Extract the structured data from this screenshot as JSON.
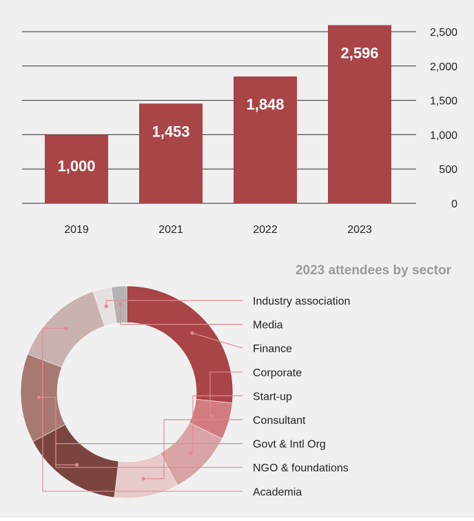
{
  "chart_data": [
    {
      "type": "bar",
      "categories": [
        "2019",
        "2021",
        "2022",
        "2023"
      ],
      "values": [
        1000,
        1453,
        1848,
        2596
      ],
      "value_labels": [
        "1,000",
        "1,453",
        "1,848",
        "2,596"
      ],
      "yticks": [
        0,
        500,
        1000,
        1500,
        2000,
        2500
      ],
      "ytick_labels": [
        "0",
        "500",
        "1,000",
        "1,500",
        "2,000",
        "2,500"
      ],
      "ylim": [
        0,
        2600
      ],
      "y_axis_side": "right",
      "grid": true,
      "bar_color": "#a94447"
    },
    {
      "type": "pie",
      "title": "2023 attendees by sector",
      "categories": [
        "Finance",
        "Corporate",
        "Start-up",
        "Consultant",
        "Govt & Intl Org",
        "NGO & foundations",
        "Academia",
        "Industry association",
        "Media"
      ],
      "values": [
        28.5,
        6.0,
        10.5,
        10.5,
        16.5,
        14.5,
        15.0,
        3.0,
        2.5
      ],
      "colors": [
        "#a94447",
        "#d27c80",
        "#d9a4a6",
        "#e8cacb",
        "#7a4540",
        "#a87872",
        "#c9b3b1",
        "#e6e1e0",
        "#b3b3b3"
      ],
      "legend_order": [
        "Industry association",
        "Media",
        "Finance",
        "Corporate",
        "Start-up",
        "Consultant",
        "Govt & Intl Org",
        "NGO & foundations",
        "Academia"
      ],
      "leader_color": "#e08a8e"
    }
  ]
}
